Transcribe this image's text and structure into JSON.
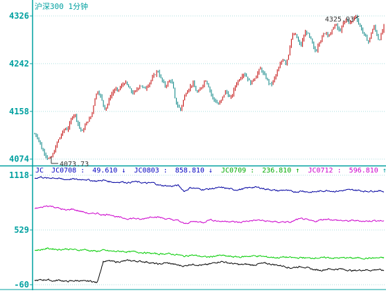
{
  "colors": {
    "background": "#ffffff",
    "axis": "#00a0a0",
    "axis_labels": "#00a0a0",
    "grid": "#a8dede",
    "candle_up": "#c00000",
    "candle_down": "#008080",
    "annotation": "#333333"
  },
  "chart_data": [
    {
      "type": "candlestick",
      "title": "沪深300 1分钟",
      "y_ticks": [
        4326,
        4242,
        4158,
        4074
      ],
      "ylim": [
        4070,
        4337
      ],
      "high_label": "4325.93",
      "low_label": "4073.73",
      "close_series": [
        4118,
        4114,
        4104,
        4090,
        4085,
        4076,
        4074,
        4080,
        4090,
        4104,
        4112,
        4120,
        4128,
        4126,
        4136,
        4150,
        4154,
        4140,
        4128,
        4122,
        4132,
        4141,
        4145,
        4158,
        4182,
        4194,
        4188,
        4174,
        4162,
        4170,
        4184,
        4191,
        4198,
        4194,
        4200,
        4205,
        4210,
        4203,
        4196,
        4190,
        4192,
        4199,
        4205,
        4200,
        4198,
        4204,
        4210,
        4218,
        4224,
        4230,
        4218,
        4210,
        4202,
        4208,
        4214,
        4205,
        4175,
        4168,
        4160,
        4175,
        4189,
        4196,
        4202,
        4208,
        4196,
        4190,
        4198,
        4206,
        4214,
        4205,
        4192,
        4180,
        4176,
        4170,
        4175,
        4185,
        4194,
        4187,
        4180,
        4192,
        4205,
        4212,
        4218,
        4225,
        4222,
        4214,
        4207,
        4214,
        4219,
        4228,
        4234,
        4224,
        4218,
        4210,
        4204,
        4212,
        4222,
        4232,
        4244,
        4252,
        4242,
        4258,
        4284,
        4294,
        4292,
        4280,
        4274,
        4288,
        4300,
        4292,
        4284,
        4270,
        4262,
        4280,
        4284,
        4294,
        4298,
        4292,
        4296,
        4308,
        4310,
        4300,
        4302,
        4314,
        4320,
        4316,
        4314,
        4324,
        4326,
        4312,
        4304,
        4294,
        4286,
        4280,
        4296,
        4308,
        4296,
        4282,
        4294,
        4308
      ]
    },
    {
      "type": "line",
      "legend_prefix": "JC",
      "y_ticks": [
        1118,
        529,
        -60
      ],
      "ylim": [
        -60,
        1118
      ],
      "series": [
        {
          "name": "JC0708",
          "value_label": "49.610",
          "arrow": "↓",
          "color": "#000000",
          "label_color": "#0000c0",
          "values": [
            -15,
            -10,
            -5,
            -20,
            -10,
            -25,
            -20,
            -15,
            -25,
            -20,
            -40,
            190,
            195,
            185,
            190,
            200,
            195,
            190,
            185,
            170,
            160,
            175,
            165,
            150,
            140,
            160,
            155,
            150,
            160,
            180,
            190,
            175,
            165,
            155,
            160,
            150,
            165,
            170,
            160,
            150,
            140,
            120,
            130,
            135,
            115,
            100,
            95,
            110,
            105,
            110,
            100,
            90,
            95,
            100,
            95,
            105,
            90
          ]
        },
        {
          "name": "JC0803",
          "value_label": "858.810",
          "arrow": "↓",
          "color": "#0000a0",
          "label_color": "#0000c0",
          "values": [
            1085,
            1100,
            1085,
            1092,
            1080,
            1072,
            1078,
            1070,
            1076,
            1062,
            1055,
            1065,
            1050,
            1042,
            1048,
            1038,
            1050,
            1040,
            1032,
            1038,
            1010,
            1005,
            1000,
            1010,
            945,
            985,
            975,
            965,
            970,
            980,
            985,
            975,
            962,
            965,
            980,
            990,
            985,
            970,
            962,
            950,
            960,
            945,
            940,
            950,
            935,
            940,
            948,
            955,
            945,
            950,
            958,
            960,
            955,
            945,
            948,
            950,
            945
          ]
        },
        {
          "name": "JC0709",
          "value_label": "236.810",
          "arrow": "↑",
          "color": "#00cc00",
          "label_color": "#00aa00",
          "values": [
            310,
            316,
            330,
            325,
            318,
            325,
            320,
            312,
            318,
            305,
            300,
            310,
            302,
            298,
            300,
            292,
            295,
            288,
            282,
            275,
            270,
            275,
            268,
            262,
            245,
            260,
            252,
            240,
            238,
            250,
            255,
            245,
            240,
            238,
            245,
            250,
            248,
            240,
            235,
            230,
            238,
            232,
            228,
            232,
            225,
            230,
            228,
            232,
            226,
            228,
            230,
            226,
            228,
            224,
            226,
            228,
            230
          ]
        },
        {
          "name": "JC0712",
          "value_label": "596.810",
          "arrow": "↑",
          "color": "#cc00cc",
          "label_color": "#cc00cc",
          "values": [
            760,
            770,
            790,
            780,
            760,
            740,
            755,
            735,
            720,
            700,
            710,
            690,
            700,
            670,
            660,
            650,
            655,
            640,
            660,
            675,
            665,
            650,
            640,
            630,
            595,
            615,
            620,
            610,
            640,
            630,
            620,
            625,
            615,
            610,
            625,
            630,
            635,
            625,
            620,
            612,
            618,
            610,
            640,
            650,
            630,
            622,
            640,
            648,
            635,
            632,
            625,
            630,
            628,
            622,
            628,
            630,
            625
          ]
        }
      ]
    }
  ]
}
